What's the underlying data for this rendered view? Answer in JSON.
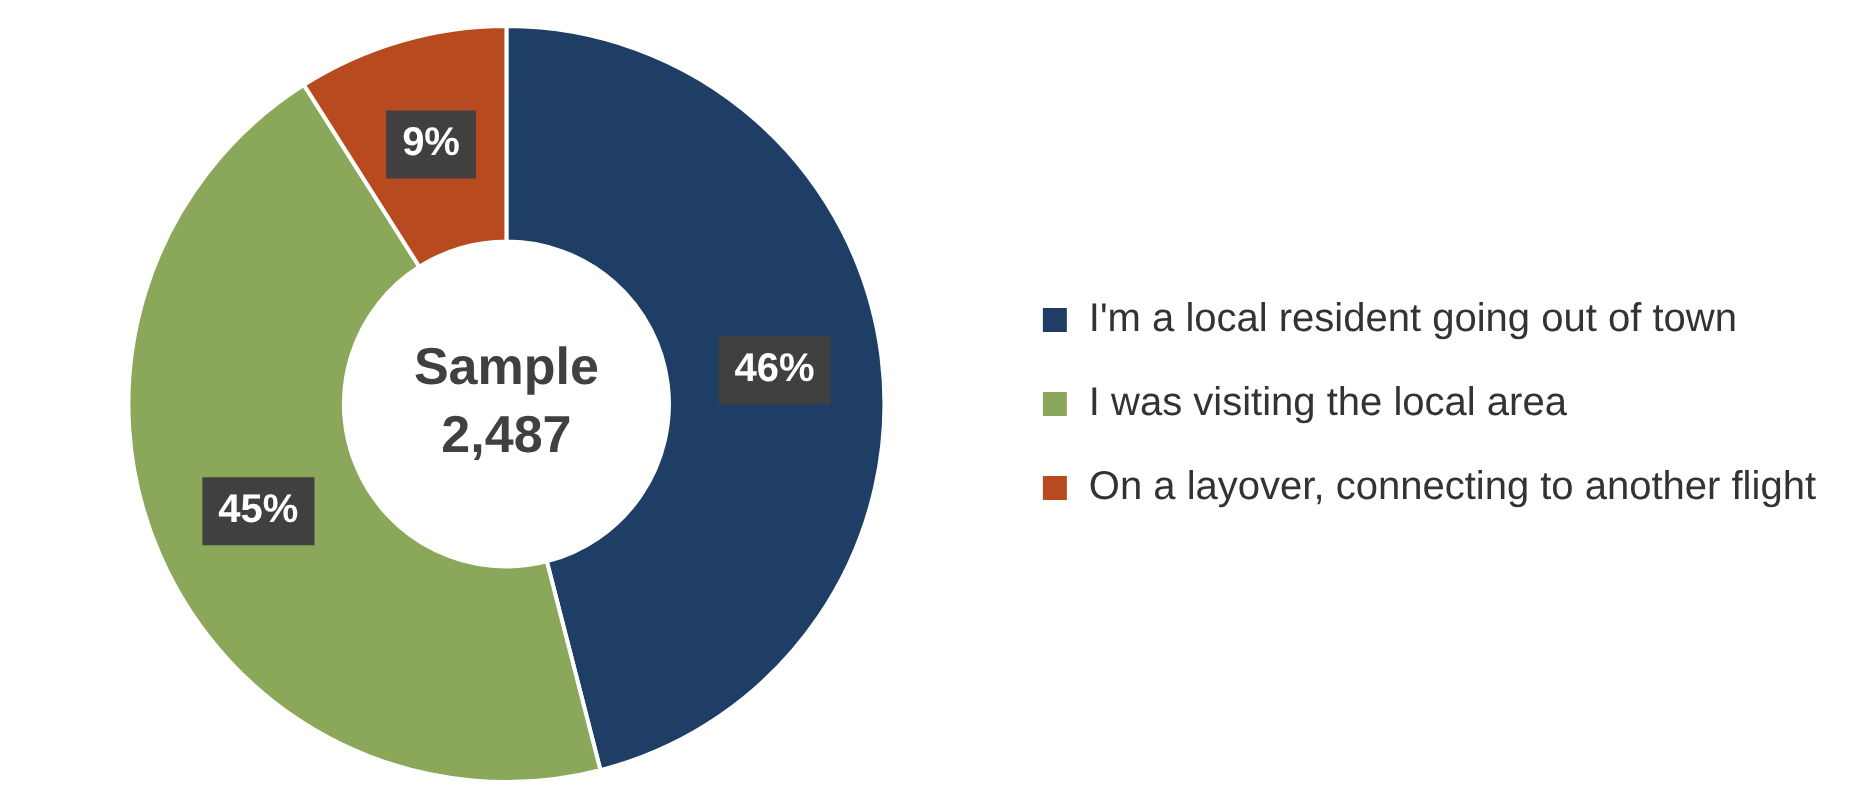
{
  "chart_data": {
    "type": "donut",
    "categories": [
      "I'm a local resident going out of town",
      "I was visiting the local area",
      "On a layover, connecting to another flight"
    ],
    "values": [
      46,
      45,
      9
    ],
    "colors": [
      "#1f3e66",
      "#8aa75a",
      "#b84a1f"
    ],
    "value_labels": [
      "46%",
      "45%",
      "9%"
    ],
    "annotations": [
      "Sample",
      "2,487"
    ],
    "legend": "right"
  }
}
